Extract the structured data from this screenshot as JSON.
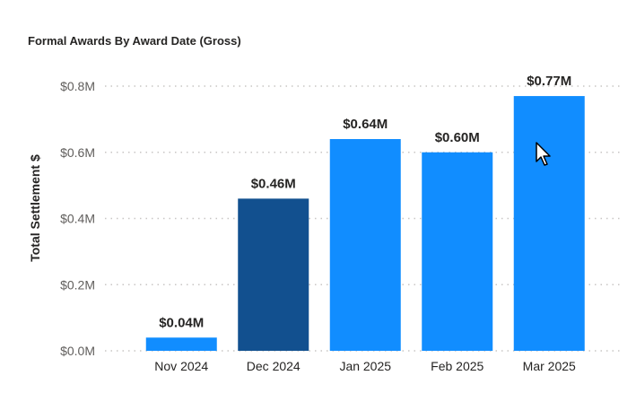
{
  "chart_data": {
    "type": "bar",
    "title": "Formal Awards By Award Date (Gross)",
    "xlabel": "",
    "ylabel": "Total Settlement $",
    "categories": [
      "Nov 2024",
      "Dec 2024",
      "Jan 2025",
      "Feb 2025",
      "Mar 2025"
    ],
    "values": [
      0.04,
      0.46,
      0.64,
      0.6,
      0.77
    ],
    "value_unit": "$M",
    "data_labels": [
      "$0.04M",
      "$0.46M",
      "$0.64M",
      "$0.60M",
      "$0.77M"
    ],
    "ylim": [
      0,
      0.8
    ],
    "y_ticks": [
      {
        "value": 0.0,
        "label": "$0.0M"
      },
      {
        "value": 0.2,
        "label": "$0.2M"
      },
      {
        "value": 0.4,
        "label": "$0.4M"
      },
      {
        "value": 0.6,
        "label": "$0.6M"
      },
      {
        "value": 0.8,
        "label": "$0.8M"
      }
    ],
    "grid": true,
    "grid_style": "dotted horizontal",
    "highlighted_category": "Dec 2024",
    "colors": {
      "bar": "#118DFF",
      "bar_highlight": "#12508F",
      "grid": "#C8C6C4",
      "tick_label": "#605E5C",
      "data_label": "#252423",
      "title": "#252423"
    }
  }
}
